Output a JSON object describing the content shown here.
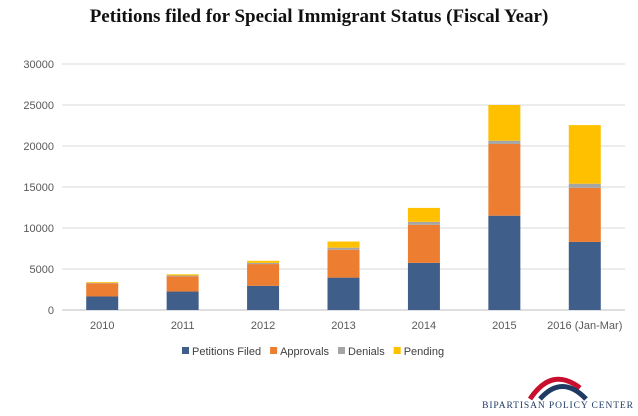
{
  "chart_data": {
    "type": "bar",
    "stacked": true,
    "title": "Petitions filed for Special Immigrant Status (Fiscal Year)",
    "categories": [
      "2010",
      "2011",
      "2012",
      "2013",
      "2014",
      "2015",
      "2016 (Jan-Mar)"
    ],
    "series": [
      {
        "name": "Petitions Filed",
        "color": "#3f5f8a",
        "values": [
          1650,
          2250,
          2950,
          3950,
          5750,
          11500,
          8300
        ]
      },
      {
        "name": "Approvals",
        "color": "#ed7d31",
        "values": [
          1600,
          1850,
          2650,
          3400,
          4650,
          8750,
          6600
        ]
      },
      {
        "name": "Denials",
        "color": "#a5a5a5",
        "values": [
          50,
          100,
          150,
          250,
          350,
          400,
          500
        ]
      },
      {
        "name": "Pending",
        "color": "#ffc000",
        "values": [
          100,
          150,
          250,
          750,
          1700,
          4350,
          7150
        ]
      }
    ],
    "ylim": [
      0,
      30000
    ],
    "yticks": [
      "0",
      "5000",
      "10000",
      "15000",
      "20000",
      "25000",
      "30000"
    ],
    "grid": true,
    "legend": "bottom"
  },
  "branding": {
    "name": "BIPARTISAN POLICY CENTER",
    "colors": {
      "red": "#c8102e",
      "navy": "#1f3b63"
    }
  }
}
